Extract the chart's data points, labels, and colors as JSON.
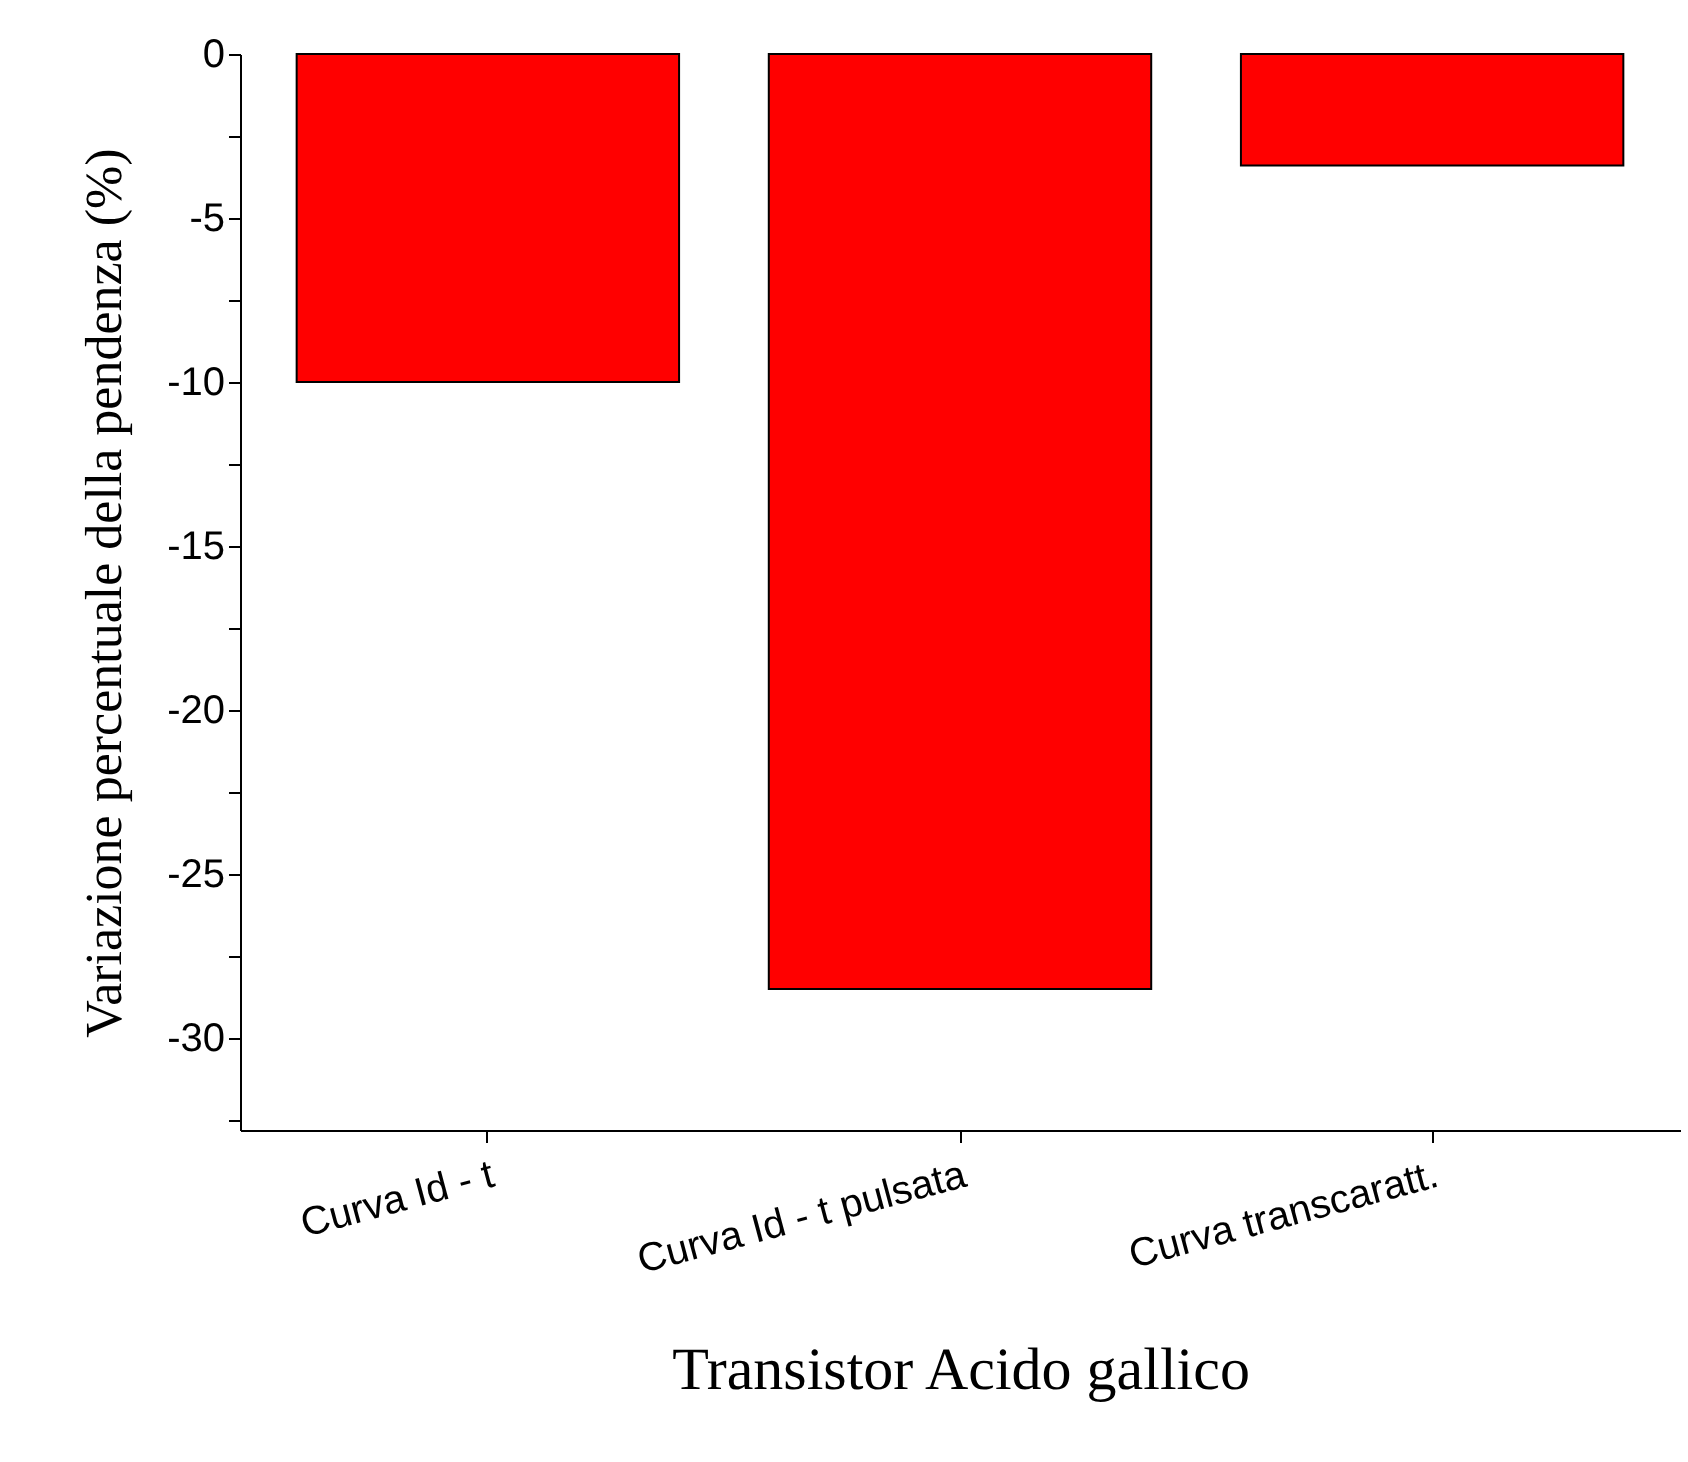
{
  "chart_data": {
    "type": "bar",
    "xlabel": "Transistor Acido gallico",
    "ylabel": "Variazione percentuale della pendenza (%)",
    "categories": [
      "Curva Id - t",
      "Curva Id - t pulsata",
      "Curva transcaratt."
    ],
    "values": [
      -10.0,
      -28.5,
      -3.4
    ],
    "color": "#ff0000",
    "ylim": [
      -32.8,
      0
    ],
    "yticks": [
      0,
      {
        "value": -2.5,
        "label": null
      },
      -5,
      {
        "value": -7.5,
        "label": null
      },
      -10,
      {
        "value": -12.5,
        "label": null
      },
      -15,
      {
        "value": -17.5,
        "label": null
      },
      -20,
      {
        "value": -22.5,
        "label": null
      },
      -25,
      {
        "value": -27.5,
        "label": null
      },
      -30,
      {
        "value": -32.5,
        "label": null
      }
    ],
    "grid": false
  }
}
